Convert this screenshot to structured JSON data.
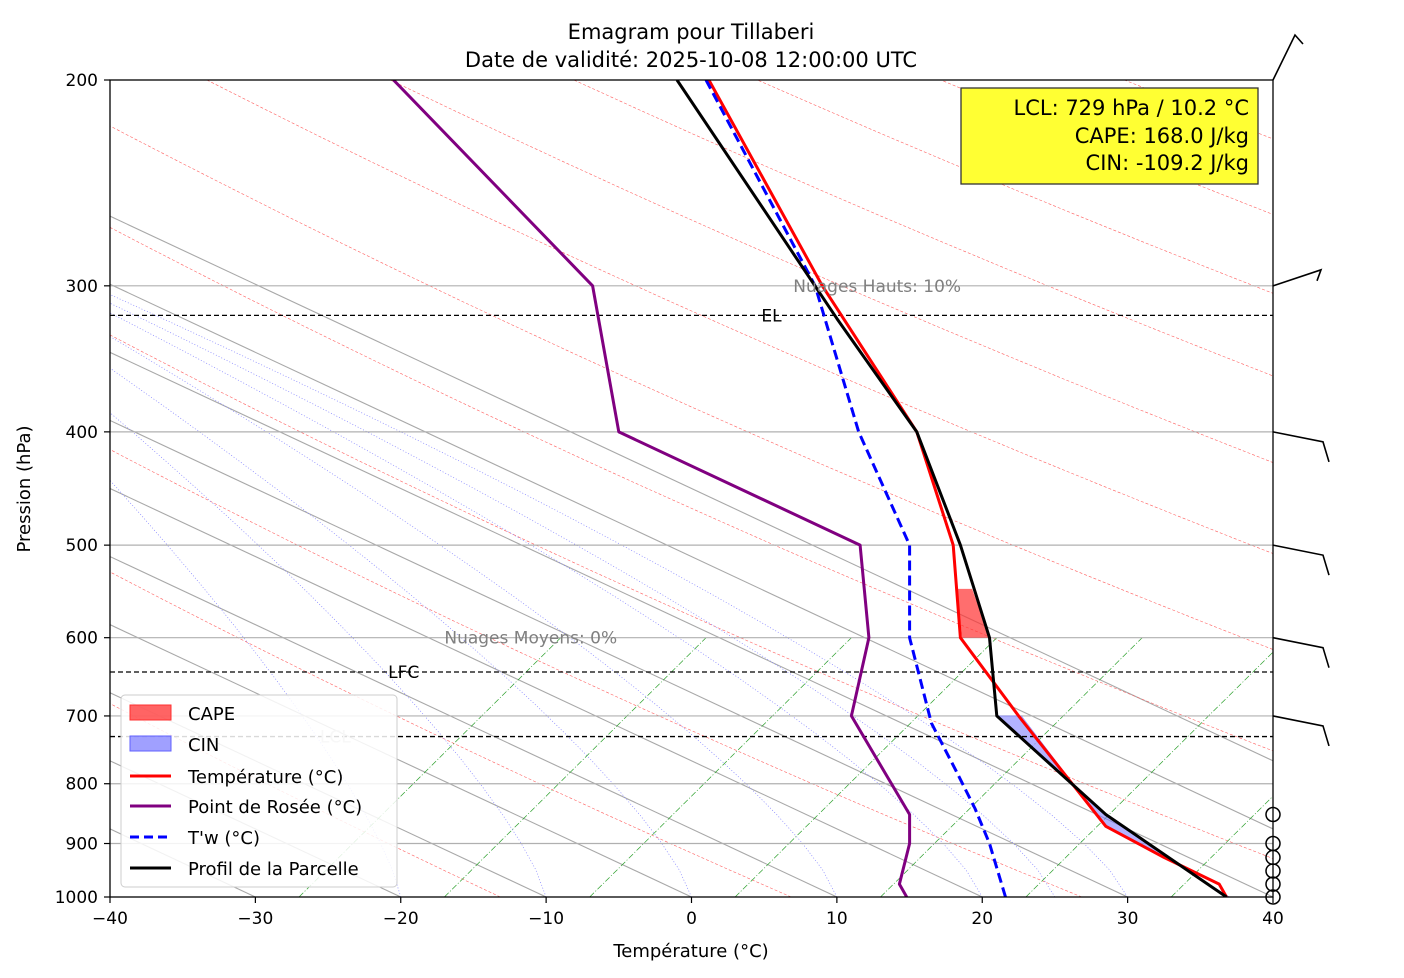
{
  "chart_data": {
    "type": "line",
    "title": "Emagram pour Tillaberi",
    "subtitle": "Date de validité: 2025-10-08 12:00:00 UTC",
    "xlabel": "Température (°C)",
    "ylabel": "Pression (hPa)",
    "xlim": [
      -40,
      40
    ],
    "ylim": [
      1000,
      200
    ],
    "yscale": "log",
    "x_ticks": [
      -40,
      -30,
      -20,
      -10,
      0,
      10,
      20,
      30,
      40
    ],
    "x_tick_labels": [
      "−40",
      "−30",
      "−20",
      "−10",
      "0",
      "10",
      "20",
      "30",
      "40"
    ],
    "y_ticks": [
      1000,
      900,
      800,
      700,
      600,
      500,
      400,
      300,
      200
    ],
    "y_tick_labels": [
      "1000",
      "900",
      "800",
      "700",
      "600",
      "500",
      "400",
      "300",
      "200"
    ],
    "grid": true,
    "legend_position": "lower-left",
    "series": [
      {
        "name": "Température (°C)",
        "color": "#ff0000",
        "style": "solid",
        "points": [
          [
            36.8,
            1000
          ],
          [
            36.3,
            975
          ],
          [
            32.5,
            925
          ],
          [
            28.5,
            870
          ],
          [
            22.5,
            700
          ],
          [
            18.5,
            600
          ],
          [
            18,
            500
          ],
          [
            15.5,
            400
          ],
          [
            9,
            300
          ],
          [
            1.2,
            200
          ]
        ]
      },
      {
        "name": "Point de Rosée (°C)",
        "color": "#800080",
        "style": "solid",
        "points": [
          [
            14.8,
            1000
          ],
          [
            14.3,
            975
          ],
          [
            15,
            900
          ],
          [
            15,
            850
          ],
          [
            11,
            700
          ],
          [
            12.2,
            600
          ],
          [
            11.6,
            500
          ],
          [
            -5,
            400
          ],
          [
            -6.8,
            300
          ],
          [
            -20.5,
            200
          ]
        ]
      },
      {
        "name": "T'w (°C)",
        "color": "#0000ff",
        "style": "dashed",
        "points": [
          [
            21.6,
            1000
          ],
          [
            20.5,
            900
          ],
          [
            19.5,
            840
          ],
          [
            18.2,
            780
          ],
          [
            16.5,
            710
          ],
          [
            15,
            600
          ],
          [
            15,
            500
          ],
          [
            11.5,
            400
          ],
          [
            8.5,
            300
          ],
          [
            1,
            200
          ]
        ]
      },
      {
        "name": "Profil de la Parcelle",
        "color": "#000000",
        "style": "solid",
        "points": [
          [
            36.8,
            1000
          ],
          [
            28.5,
            850
          ],
          [
            21,
            700
          ],
          [
            20.5,
            600
          ],
          [
            18.5,
            500
          ],
          [
            15.5,
            400
          ],
          [
            10,
            320
          ],
          [
            -1,
            200
          ]
        ]
      }
    ],
    "levels": [
      {
        "name": "EL",
        "pressure": 318
      },
      {
        "name": "LFC",
        "pressure": 642
      },
      {
        "name": "LCL",
        "pressure": 729
      }
    ],
    "level_label_x": [
      5.5,
      -19.8,
      -24.5
    ],
    "cloud_labels": [
      {
        "text": "Nuages Hauts: 10%",
        "pressure": 300,
        "x": 7.0
      },
      {
        "text": "Nuages Moyens: 0%",
        "pressure": 600,
        "x": -17.0
      }
    ],
    "legend": [
      "CAPE",
      "CIN",
      "Température (°C)",
      "Point de Rosée (°C)",
      "T'w (°C)",
      "Profil de la Parcelle"
    ],
    "info_box": [
      "LCL: 729 hPa / 10.2 °C",
      "CAPE: 168.0 J/kg",
      "CIN: -109.2 J/kg"
    ],
    "cloud_cover_levels": [
      1000,
      975,
      950,
      925,
      900,
      850
    ],
    "wind_barb_levels": [
      200,
      300,
      400,
      500,
      600,
      700
    ]
  },
  "colors": {
    "cape": "#ff3030",
    "cin": "#8080ff",
    "info_bg": "#ffff33",
    "grid": "#b0b0b0",
    "skew_isotherm": "#a8a8a8",
    "dry_adiabat": "#ff6060",
    "moist_adiabat": "#8080ff",
    "mixing_ratio": "#2ca02c"
  }
}
